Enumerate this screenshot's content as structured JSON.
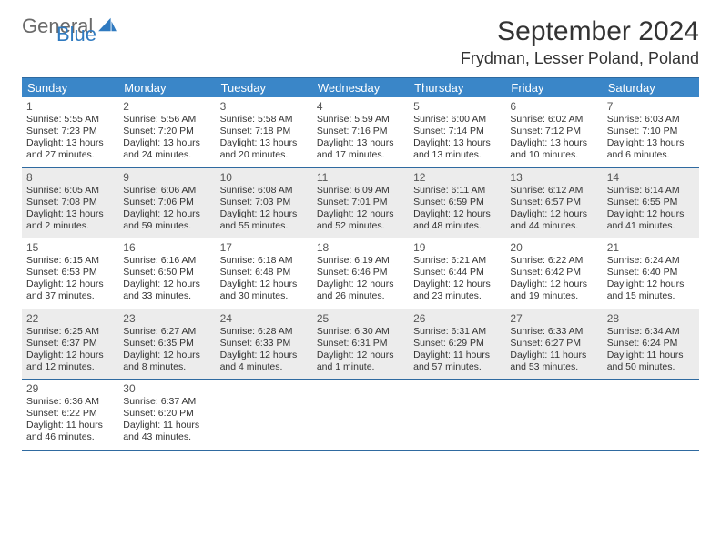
{
  "brand": {
    "part1": "General",
    "part2": "Blue"
  },
  "title": "September 2024",
  "location": "Frydman, Lesser Poland, Poland",
  "colors": {
    "header_bg": "#3a86c8",
    "border": "#2f6aa0",
    "alt_row": "#ececec",
    "brand_gray": "#6a6a6a",
    "brand_blue": "#2f7ac0"
  },
  "daysOfWeek": [
    "Sunday",
    "Monday",
    "Tuesday",
    "Wednesday",
    "Thursday",
    "Friday",
    "Saturday"
  ],
  "weeks": [
    [
      {
        "n": "1",
        "sr": "5:55 AM",
        "ss": "7:23 PM",
        "dl": "13 hours and 27 minutes."
      },
      {
        "n": "2",
        "sr": "5:56 AM",
        "ss": "7:20 PM",
        "dl": "13 hours and 24 minutes."
      },
      {
        "n": "3",
        "sr": "5:58 AM",
        "ss": "7:18 PM",
        "dl": "13 hours and 20 minutes."
      },
      {
        "n": "4",
        "sr": "5:59 AM",
        "ss": "7:16 PM",
        "dl": "13 hours and 17 minutes."
      },
      {
        "n": "5",
        "sr": "6:00 AM",
        "ss": "7:14 PM",
        "dl": "13 hours and 13 minutes."
      },
      {
        "n": "6",
        "sr": "6:02 AM",
        "ss": "7:12 PM",
        "dl": "13 hours and 10 minutes."
      },
      {
        "n": "7",
        "sr": "6:03 AM",
        "ss": "7:10 PM",
        "dl": "13 hours and 6 minutes."
      }
    ],
    [
      {
        "n": "8",
        "sr": "6:05 AM",
        "ss": "7:08 PM",
        "dl": "13 hours and 2 minutes."
      },
      {
        "n": "9",
        "sr": "6:06 AM",
        "ss": "7:06 PM",
        "dl": "12 hours and 59 minutes."
      },
      {
        "n": "10",
        "sr": "6:08 AM",
        "ss": "7:03 PM",
        "dl": "12 hours and 55 minutes."
      },
      {
        "n": "11",
        "sr": "6:09 AM",
        "ss": "7:01 PM",
        "dl": "12 hours and 52 minutes."
      },
      {
        "n": "12",
        "sr": "6:11 AM",
        "ss": "6:59 PM",
        "dl": "12 hours and 48 minutes."
      },
      {
        "n": "13",
        "sr": "6:12 AM",
        "ss": "6:57 PM",
        "dl": "12 hours and 44 minutes."
      },
      {
        "n": "14",
        "sr": "6:14 AM",
        "ss": "6:55 PM",
        "dl": "12 hours and 41 minutes."
      }
    ],
    [
      {
        "n": "15",
        "sr": "6:15 AM",
        "ss": "6:53 PM",
        "dl": "12 hours and 37 minutes."
      },
      {
        "n": "16",
        "sr": "6:16 AM",
        "ss": "6:50 PM",
        "dl": "12 hours and 33 minutes."
      },
      {
        "n": "17",
        "sr": "6:18 AM",
        "ss": "6:48 PM",
        "dl": "12 hours and 30 minutes."
      },
      {
        "n": "18",
        "sr": "6:19 AM",
        "ss": "6:46 PM",
        "dl": "12 hours and 26 minutes."
      },
      {
        "n": "19",
        "sr": "6:21 AM",
        "ss": "6:44 PM",
        "dl": "12 hours and 23 minutes."
      },
      {
        "n": "20",
        "sr": "6:22 AM",
        "ss": "6:42 PM",
        "dl": "12 hours and 19 minutes."
      },
      {
        "n": "21",
        "sr": "6:24 AM",
        "ss": "6:40 PM",
        "dl": "12 hours and 15 minutes."
      }
    ],
    [
      {
        "n": "22",
        "sr": "6:25 AM",
        "ss": "6:37 PM",
        "dl": "12 hours and 12 minutes."
      },
      {
        "n": "23",
        "sr": "6:27 AM",
        "ss": "6:35 PM",
        "dl": "12 hours and 8 minutes."
      },
      {
        "n": "24",
        "sr": "6:28 AM",
        "ss": "6:33 PM",
        "dl": "12 hours and 4 minutes."
      },
      {
        "n": "25",
        "sr": "6:30 AM",
        "ss": "6:31 PM",
        "dl": "12 hours and 1 minute."
      },
      {
        "n": "26",
        "sr": "6:31 AM",
        "ss": "6:29 PM",
        "dl": "11 hours and 57 minutes."
      },
      {
        "n": "27",
        "sr": "6:33 AM",
        "ss": "6:27 PM",
        "dl": "11 hours and 53 minutes."
      },
      {
        "n": "28",
        "sr": "6:34 AM",
        "ss": "6:24 PM",
        "dl": "11 hours and 50 minutes."
      }
    ],
    [
      {
        "n": "29",
        "sr": "6:36 AM",
        "ss": "6:22 PM",
        "dl": "11 hours and 46 minutes."
      },
      {
        "n": "30",
        "sr": "6:37 AM",
        "ss": "6:20 PM",
        "dl": "11 hours and 43 minutes."
      },
      null,
      null,
      null,
      null,
      null
    ]
  ],
  "labels": {
    "sunrise": "Sunrise: ",
    "sunset": "Sunset: ",
    "daylight": "Daylight: "
  }
}
